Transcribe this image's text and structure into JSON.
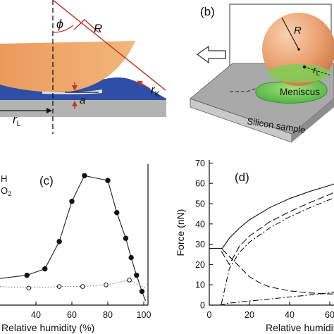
{
  "panels": {
    "a": {
      "symbols": {
        "phi": "ϕ",
        "R": "R",
        "rK": "r",
        "rK_sub": "K",
        "a": "a",
        "rL": "r",
        "rL_sub": "L"
      }
    },
    "b": {
      "label": "(b)",
      "symbols": {
        "R": "R",
        "rL": "r",
        "rL_sub": "L"
      },
      "meniscus": "Meniscus",
      "sample": "Silicon sample"
    },
    "c": {
      "label": "(c)",
      "legend_fragment_1": "H",
      "legend_fragment_2": "O",
      "legend_fragment_2_sub": "2",
      "xlabel": "Relative humidity  (%)"
    },
    "d": {
      "label": "(d)",
      "ylabel": "Force (nN)",
      "xlabel": "Relative humidity"
    }
  },
  "chart_data": [
    {
      "panel": "c",
      "type": "line",
      "x_ticks": [
        "40",
        "60",
        "80",
        "100"
      ],
      "xlim": [
        20,
        100
      ],
      "ylim": [
        0,
        1
      ],
      "grid": false,
      "series": [
        {
          "marker": "filled-circle",
          "line": "solid",
          "x": [
            20,
            35,
            45,
            53,
            60,
            67,
            80,
            85,
            90,
            93,
            96,
            99,
            101
          ],
          "y": [
            0.1,
            0.12,
            0.16,
            0.33,
            0.58,
            0.74,
            0.71,
            0.51,
            0.35,
            0.23,
            0.12,
            0.02,
            -0.04
          ]
        },
        {
          "marker": "open-circle",
          "line": "dotted",
          "x": [
            20,
            36,
            53,
            66,
            79,
            92,
            101
          ],
          "y": [
            0.05,
            0.04,
            0.05,
            0.05,
            0.06,
            0.09,
            0.04
          ]
        }
      ]
    },
    {
      "panel": "d",
      "type": "line",
      "y_ticks": [
        "0",
        "10",
        "20",
        "30",
        "40",
        "50",
        "60",
        "70"
      ],
      "x_ticks": [
        "0",
        "20",
        "40",
        "60"
      ],
      "xlim": [
        0,
        63
      ],
      "ylim": [
        0,
        70
      ],
      "grid": false,
      "series": [
        {
          "line": "solid",
          "x": [
            0,
            5,
            6.5,
            10,
            15,
            20,
            30,
            40,
            50,
            60,
            63
          ],
          "y": [
            28,
            28,
            28,
            33,
            38,
            42,
            48,
            52.5,
            56,
            59,
            60
          ]
        },
        {
          "line": "long-dash",
          "x": [
            6,
            10,
            15,
            20,
            30,
            40,
            50,
            60,
            63
          ],
          "y": [
            26.5,
            20,
            29,
            34,
            41,
            46,
            50.5,
            54.5,
            56
          ]
        },
        {
          "line": "dash-dot",
          "x": [
            6,
            10,
            15,
            20,
            30,
            40,
            50,
            60,
            63
          ],
          "y": [
            0.5,
            18,
            26,
            31,
            38,
            43.5,
            48,
            52,
            53
          ]
        },
        {
          "line": "dashed-lower",
          "x": [
            6.5,
            10,
            15,
            20,
            25,
            30,
            40,
            50,
            60,
            63
          ],
          "y": [
            27.5,
            24,
            19,
            14,
            11,
            9,
            7,
            6,
            5.5,
            5.5
          ]
        },
        {
          "line": "dash-dot-lower",
          "x": [
            5,
            10,
            20,
            30,
            40,
            50,
            60,
            63
          ],
          "y": [
            0,
            1,
            2,
            3,
            4,
            5,
            6,
            6.5
          ]
        }
      ]
    }
  ]
}
